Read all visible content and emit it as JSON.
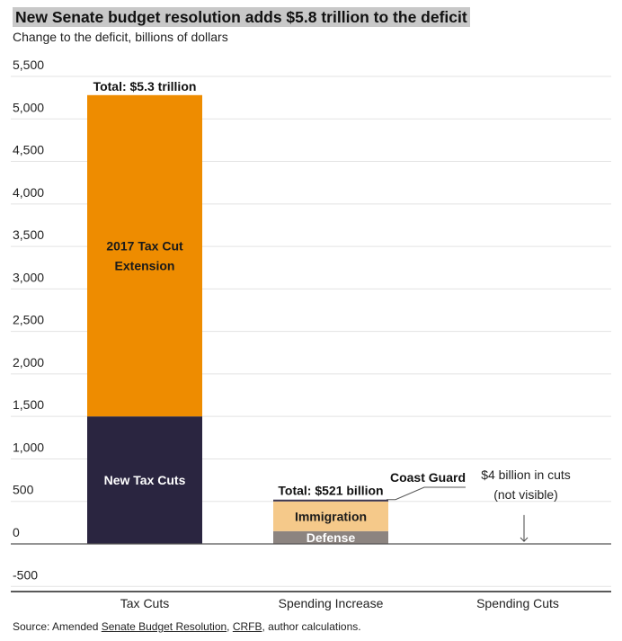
{
  "chart_data": {
    "type": "bar",
    "stacked": true,
    "title": "New Senate budget resolution adds $5.8 trillion to the deficit",
    "subtitle": "Change to the deficit, billions of dollars",
    "ylim": [
      -500,
      5500
    ],
    "yticks": [
      {
        "value": 5500,
        "label": "5,500"
      },
      {
        "value": 5000,
        "label": "5,000"
      },
      {
        "value": 4500,
        "label": "4,500"
      },
      {
        "value": 4000,
        "label": "4,000"
      },
      {
        "value": 3500,
        "label": "3,500"
      },
      {
        "value": 3000,
        "label": "3,000"
      },
      {
        "value": 2500,
        "label": "2,500"
      },
      {
        "value": 2000,
        "label": "2,000"
      },
      {
        "value": 1500,
        "label": "1,500"
      },
      {
        "value": 1000,
        "label": "1,000"
      },
      {
        "value": 500,
        "label": "500"
      },
      {
        "value": 0,
        "label": "0"
      },
      {
        "value": -500,
        "label": "-500"
      }
    ],
    "grid": true,
    "categories": [
      "Tax Cuts",
      "Spending Increase",
      "Spending Cuts"
    ],
    "bars": [
      {
        "category": "Tax Cuts",
        "total_label": "Total: $5.3 trillion",
        "segments": [
          {
            "label": "New Tax Cuts",
            "value": 1500,
            "color": "#2a2540",
            "text_color": "#ffffff"
          },
          {
            "label": "2017 Tax Cut Extension",
            "label_lines": [
              "2017 Tax Cut",
              "Extension"
            ],
            "value": 3780,
            "color": "#ee8c00",
            "text_color": "#1a1a1a"
          }
        ]
      },
      {
        "category": "Spending Increase",
        "total_label": "Total: $521 billion",
        "segments": [
          {
            "label": "Defense",
            "value": 150,
            "color": "#8c8480",
            "text_color": "#ffffff"
          },
          {
            "label": "Immigration",
            "value": 350,
            "color": "#f5c98a",
            "text_color": "#1a1a1a"
          },
          {
            "label": "Coast Guard",
            "value": 21,
            "color": "#3a3550",
            "text_color": "#111111",
            "callout": true
          }
        ]
      },
      {
        "category": "Spending Cuts",
        "segments": [],
        "annotation_lines": [
          "$4 billion in cuts",
          "(not visible)"
        ]
      }
    ]
  },
  "source": {
    "prefix": "Source: Amended ",
    "link1": "Senate Budget Resolution",
    "sep": ", ",
    "link2": "CRFB",
    "suffix": ", author calculations."
  }
}
